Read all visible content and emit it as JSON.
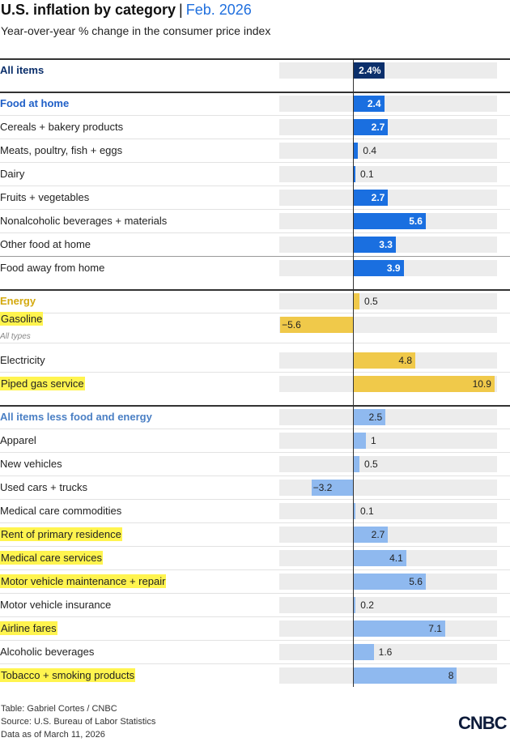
{
  "header": {
    "title": "U.S. inflation by category",
    "separator": "|",
    "date": "Feb. 2026",
    "subtitle": "Year-over-year % change in the consumer price index"
  },
  "colors": {
    "all_items": "#0b2f6b",
    "food": "#1a6fe0",
    "energy": "#f0c94a",
    "core": "#8fb9ef",
    "highlight": "#fff44f",
    "track": "#ececec"
  },
  "chart_data": {
    "type": "bar",
    "title": "U.S. inflation by category | Feb. 2026",
    "subtitle": "Year-over-year % change in the consumer price index",
    "xlim": [
      -10.9,
      21.5
    ],
    "groups": [
      {
        "name": "All items",
        "items": [
          {
            "label": "All items",
            "value": 2.4,
            "display": "2.4%",
            "header": true
          }
        ]
      },
      {
        "name": "Food at home",
        "items": [
          {
            "label": "Food at home",
            "value": 2.4,
            "display": "2.4",
            "header": true
          },
          {
            "label": "Cereals + bakery products",
            "value": 2.7,
            "display": "2.7"
          },
          {
            "label": "Meats, poultry, fish + eggs",
            "value": 0.4,
            "display": "0.4"
          },
          {
            "label": "Dairy",
            "value": 0.1,
            "display": "0.1"
          },
          {
            "label": "Fruits + vegetables",
            "value": 2.7,
            "display": "2.7"
          },
          {
            "label": "Nonalcoholic beverages + materials",
            "value": 5.6,
            "display": "5.6"
          },
          {
            "label": "Other food at home",
            "value": 3.3,
            "display": "3.3"
          },
          {
            "label": "Food away from home",
            "value": 3.9,
            "display": "3.9"
          }
        ]
      },
      {
        "name": "Energy",
        "items": [
          {
            "label": "Energy",
            "value": 0.5,
            "display": "0.5",
            "header": true
          },
          {
            "label": "Gasoline",
            "sublabel": "All types",
            "value": -5.6,
            "display": "−5.6",
            "highlight": true
          },
          {
            "label": "Electricity",
            "value": 4.8,
            "display": "4.8"
          },
          {
            "label": "Piped gas service",
            "value": 10.9,
            "display": "10.9",
            "highlight": true
          }
        ]
      },
      {
        "name": "All items less food and energy",
        "items": [
          {
            "label": "All items less food and energy",
            "value": 2.5,
            "display": "2.5",
            "header": true
          },
          {
            "label": "Apparel",
            "value": 1,
            "display": "1"
          },
          {
            "label": "New vehicles",
            "value": 0.5,
            "display": "0.5"
          },
          {
            "label": "Used cars + trucks",
            "value": -3.2,
            "display": "−3.2"
          },
          {
            "label": "Medical care commodities",
            "value": 0.1,
            "display": "0.1"
          },
          {
            "label": "Rent of primary residence",
            "value": 2.7,
            "display": "2.7",
            "highlight": true
          },
          {
            "label": "Medical care services",
            "value": 4.1,
            "display": "4.1",
            "highlight": true
          },
          {
            "label": "Motor vehicle maintenance + repair",
            "value": 5.6,
            "display": "5.6",
            "highlight": true
          },
          {
            "label": "Motor vehicle insurance",
            "value": 0.2,
            "display": "0.2"
          },
          {
            "label": "Airline fares",
            "value": 7.1,
            "display": "7.1",
            "highlight": true
          },
          {
            "label": "Alcoholic beverages",
            "value": 1.6,
            "display": "1.6"
          },
          {
            "label": "Tobacco + smoking products",
            "value": 8,
            "display": "8",
            "highlight": true
          }
        ]
      }
    ]
  },
  "footer": {
    "credit": "Table: Gabriel Cortes / CNBC",
    "source": "Source: U.S. Bureau of Labor Statistics",
    "asof": "Data as of March 11, 2026",
    "logo": "CNBC"
  }
}
